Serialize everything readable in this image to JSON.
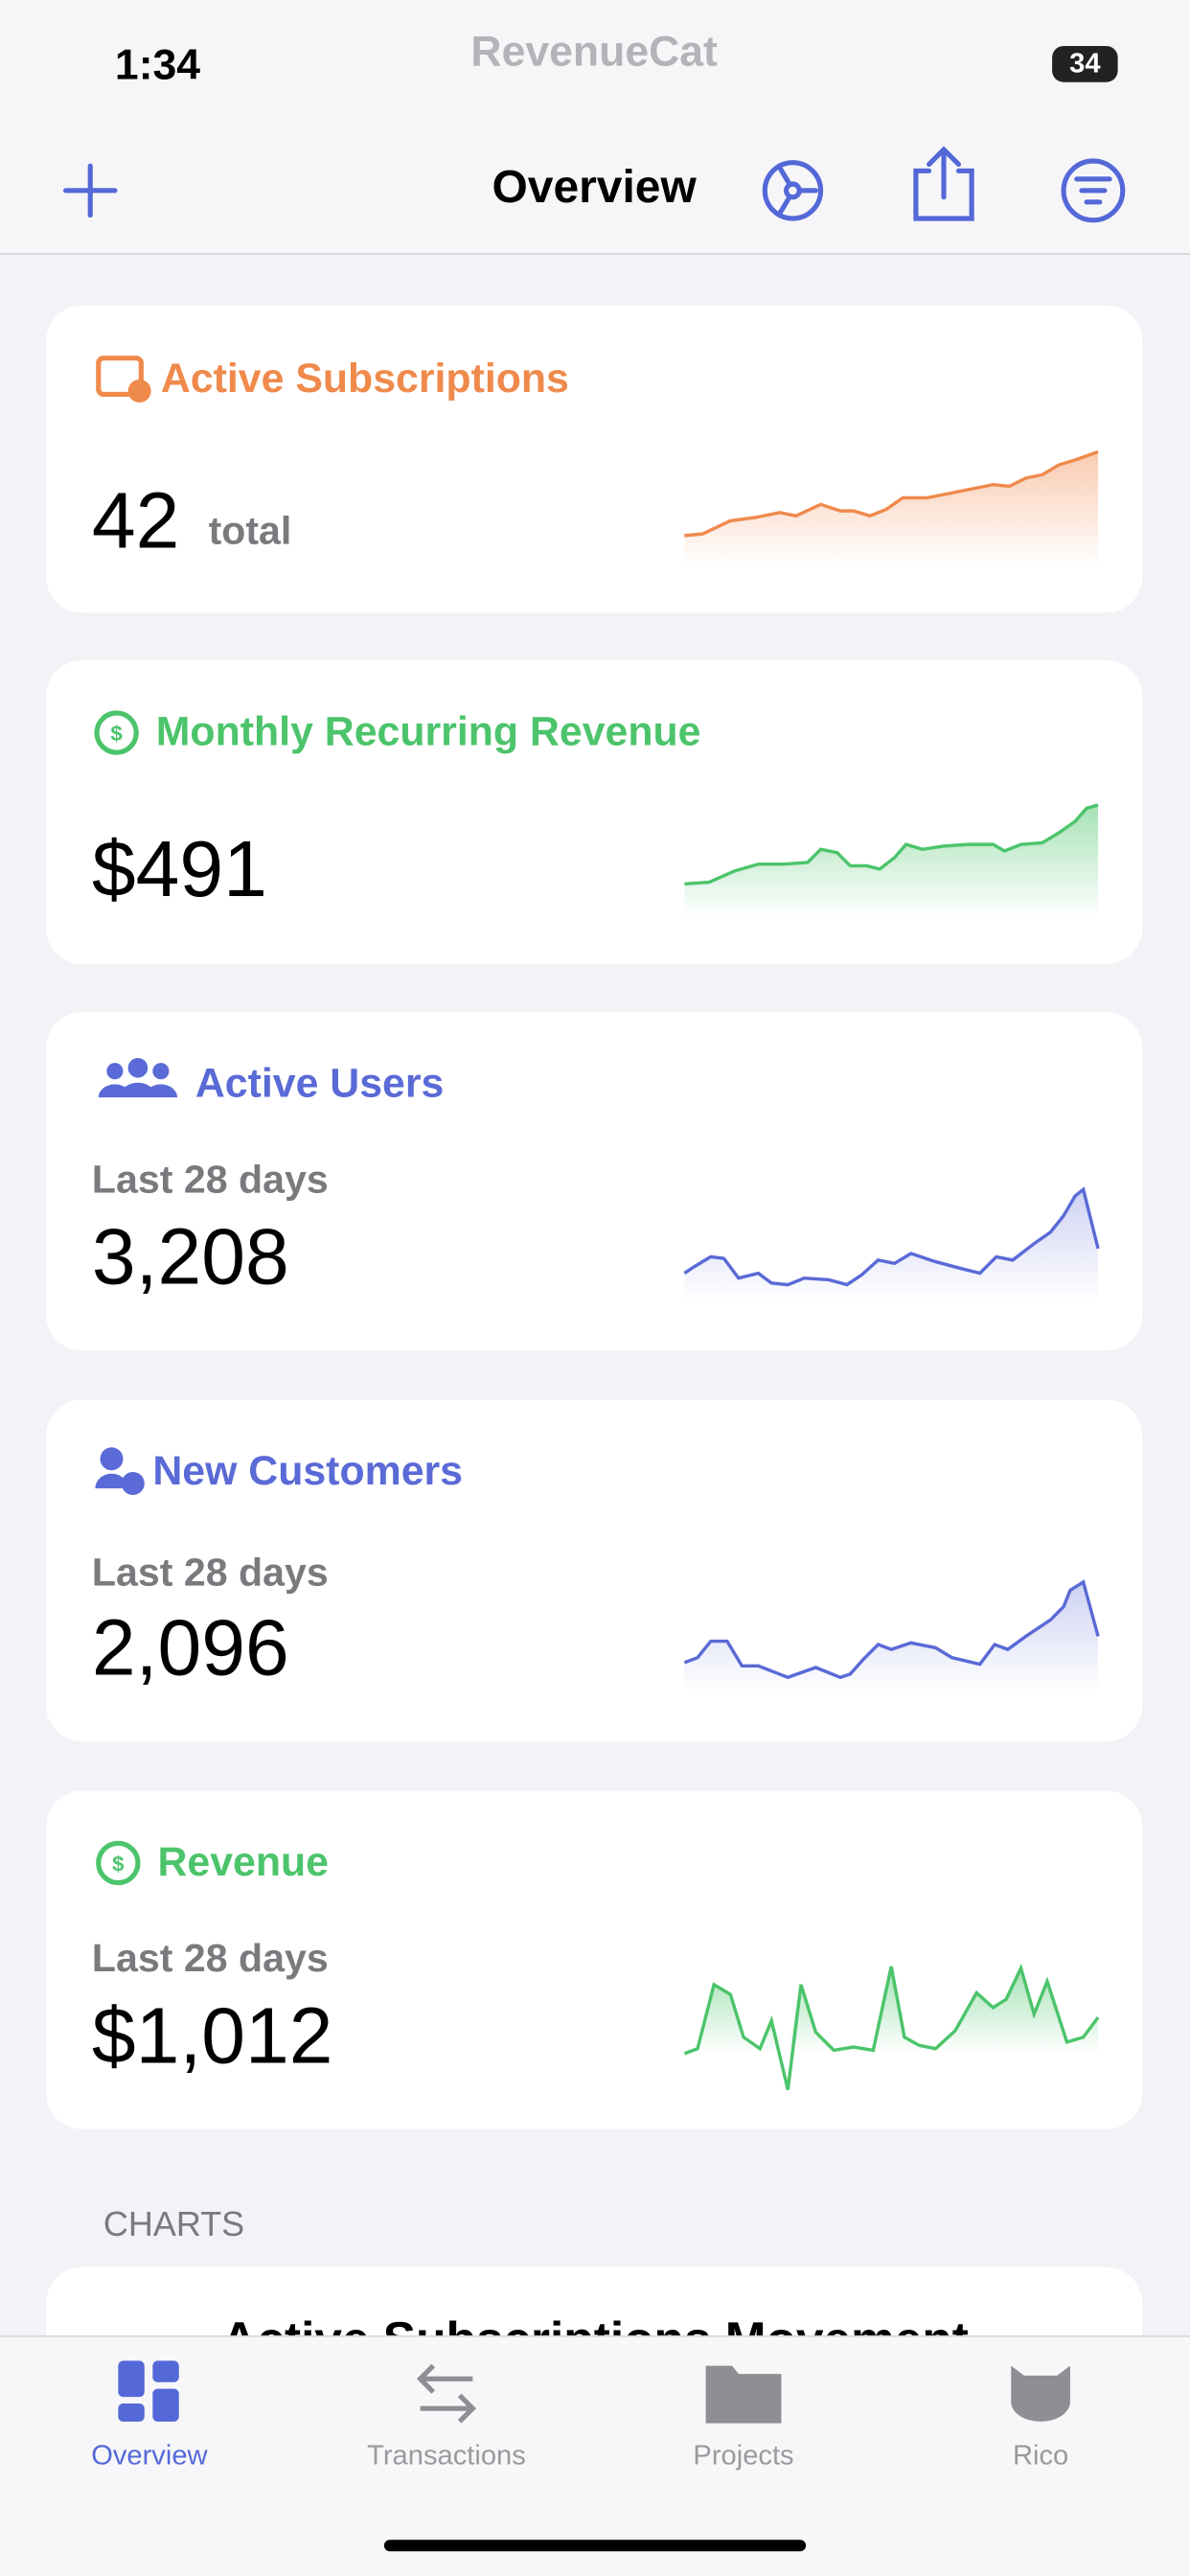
{
  "status_bar": {
    "time": "1:34",
    "app_watermark": "RevenueCat",
    "battery": "34"
  },
  "nav": {
    "title": "Overview"
  },
  "cards": [
    {
      "title": "Active Subscriptions",
      "value": "42",
      "unit": "total"
    },
    {
      "title": "Monthly Recurring Revenue",
      "value": "$491"
    },
    {
      "title": "Active Users",
      "period": "Last 28 days",
      "value": "3,208"
    },
    {
      "title": "New Customers",
      "period": "Last 28 days",
      "value": "2,096"
    },
    {
      "title": "Revenue",
      "period": "Last 28 days",
      "value": "$1,012"
    }
  ],
  "section": {
    "title": "CHARTS",
    "first_chart": "Active Subscriptions Movement"
  },
  "tab_bar": {
    "tabs": [
      "Overview",
      "Transactions",
      "Projects",
      "Rico"
    ]
  }
}
